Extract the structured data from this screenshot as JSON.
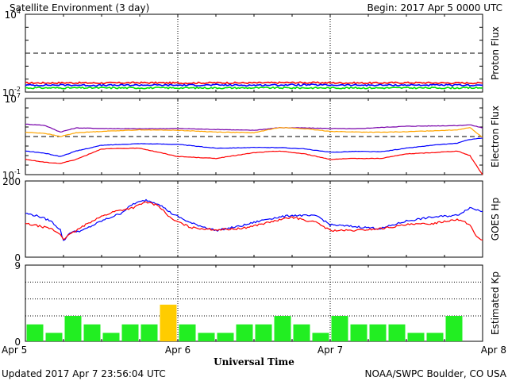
{
  "header": {
    "title": "Satellite Environment (3 day)",
    "begin": "Begin:  2017 Apr 5 0000 UTC"
  },
  "footer": {
    "updated": "Updated 2017 Apr  7 23:56:04 UTC",
    "credit": "NOAA/SWPC Boulder, CO USA"
  },
  "x_axis": {
    "title": "Universal Time",
    "range_hours": [
      0,
      72
    ],
    "ticks": [
      {
        "hour": 0,
        "label": "Apr 5"
      },
      {
        "hour": 24,
        "label": "Apr 6"
      },
      {
        "hour": 48,
        "label": "Apr 7"
      },
      {
        "hour": 72,
        "label": "Apr 8"
      }
    ]
  },
  "chart_data": [
    {
      "type": "line",
      "panel": "proton",
      "ylabel": "Proton Flux",
      "scale": "log",
      "ylim": [
        0.01,
        10000
      ],
      "y_ticks": [
        {
          "value": 10000,
          "base": "10",
          "exp": "4"
        },
        {
          "value": 0.01,
          "base": "10",
          "exp": "-2"
        }
      ],
      "threshold": 10,
      "series": [
        {
          "color": "#ff0000",
          "points": [
            [
              0,
              0.05
            ],
            [
              6,
              0.052
            ],
            [
              12,
              0.05
            ],
            [
              18,
              0.053
            ],
            [
              24,
              0.05
            ],
            [
              30,
              0.052
            ],
            [
              36,
              0.051
            ],
            [
              42,
              0.054
            ],
            [
              48,
              0.052
            ],
            [
              54,
              0.05
            ],
            [
              60,
              0.053
            ],
            [
              66,
              0.051
            ],
            [
              72,
              0.05
            ]
          ]
        },
        {
          "color": "#0000ff",
          "points": [
            [
              0,
              0.034
            ],
            [
              6,
              0.035
            ],
            [
              12,
              0.033
            ],
            [
              18,
              0.035
            ],
            [
              24,
              0.034
            ],
            [
              30,
              0.035
            ],
            [
              36,
              0.034
            ],
            [
              42,
              0.036
            ],
            [
              48,
              0.035
            ],
            [
              54,
              0.034
            ],
            [
              60,
              0.035
            ],
            [
              66,
              0.034
            ],
            [
              72,
              0.034
            ]
          ]
        },
        {
          "color": "#00dd00",
          "points": [
            [
              0,
              0.021
            ],
            [
              6,
              0.021
            ],
            [
              12,
              0.021
            ],
            [
              18,
              0.021
            ],
            [
              24,
              0.021
            ],
            [
              30,
              0.021
            ],
            [
              36,
              0.021
            ],
            [
              42,
              0.021
            ],
            [
              48,
              0.021
            ],
            [
              54,
              0.021
            ],
            [
              60,
              0.021
            ],
            [
              66,
              0.021
            ],
            [
              72,
              0.021
            ]
          ]
        }
      ]
    },
    {
      "type": "line",
      "panel": "electron",
      "ylabel": "Electron Flux",
      "scale": "log",
      "ylim": [
        0.1,
        10000000
      ],
      "y_ticks": [
        {
          "value": 10000000,
          "base": "10",
          "exp": "7"
        },
        {
          "value": 0.1,
          "base": "10",
          "exp": "-1"
        }
      ],
      "threshold": 1000,
      "series": [
        {
          "color": "#7700aa",
          "points": [
            [
              0,
              20000
            ],
            [
              3,
              15000
            ],
            [
              5.5,
              3000
            ],
            [
              8,
              8000
            ],
            [
              12,
              7000
            ],
            [
              18,
              6500
            ],
            [
              24,
              7000
            ],
            [
              30,
              5500
            ],
            [
              36,
              4500
            ],
            [
              40,
              8500
            ],
            [
              44,
              8000
            ],
            [
              48,
              7000
            ],
            [
              52,
              6500
            ],
            [
              56,
              9000
            ],
            [
              60,
              12000
            ],
            [
              64,
              13000
            ],
            [
              68,
              14000
            ],
            [
              70,
              17000
            ],
            [
              72,
              8000
            ]
          ]
        },
        {
          "color": "#ffa500",
          "points": [
            [
              0,
              2800
            ],
            [
              3,
              2200
            ],
            [
              5.5,
              1000
            ],
            [
              8,
              2500
            ],
            [
              12,
              3500
            ],
            [
              18,
              5000
            ],
            [
              24,
              4500
            ],
            [
              30,
              3000
            ],
            [
              36,
              2500
            ],
            [
              40,
              9000
            ],
            [
              44,
              6500
            ],
            [
              48,
              3500
            ],
            [
              52,
              3000
            ],
            [
              56,
              2800
            ],
            [
              60,
              3200
            ],
            [
              64,
              4000
            ],
            [
              68,
              5000
            ],
            [
              70,
              9000
            ],
            [
              72,
              800
            ]
          ]
        },
        {
          "color": "#0000ff",
          "points": [
            [
              0,
              30
            ],
            [
              3,
              18
            ],
            [
              5.5,
              8
            ],
            [
              8,
              30
            ],
            [
              12,
              120
            ],
            [
              18,
              180
            ],
            [
              24,
              150
            ],
            [
              30,
              60
            ],
            [
              36,
              70
            ],
            [
              40,
              70
            ],
            [
              44,
              50
            ],
            [
              48,
              22
            ],
            [
              52,
              28
            ],
            [
              56,
              25
            ],
            [
              60,
              60
            ],
            [
              64,
              120
            ],
            [
              68,
              200
            ],
            [
              70,
              500
            ],
            [
              72,
              700
            ]
          ]
        },
        {
          "color": "#ff0000",
          "points": [
            [
              0,
              4
            ],
            [
              3,
              2
            ],
            [
              5.5,
              1.5
            ],
            [
              8,
              4
            ],
            [
              12,
              50
            ],
            [
              18,
              60
            ],
            [
              24,
              8
            ],
            [
              30,
              5
            ],
            [
              36,
              20
            ],
            [
              40,
              30
            ],
            [
              44,
              15
            ],
            [
              48,
              4
            ],
            [
              52,
              5
            ],
            [
              56,
              5
            ],
            [
              60,
              15
            ],
            [
              64,
              20
            ],
            [
              68,
              30
            ],
            [
              70,
              10
            ],
            [
              71.5,
              0.3
            ],
            [
              72,
              0.1
            ]
          ]
        }
      ]
    },
    {
      "type": "line",
      "panel": "goes-hp",
      "ylabel": "GOES Hp",
      "scale": "linear",
      "ylim": [
        0,
        200
      ],
      "y_ticks": [
        {
          "value": 200,
          "label": "200"
        },
        {
          "value": 0,
          "label": "0"
        }
      ],
      "series": [
        {
          "color": "#0000ff",
          "points": [
            [
              0,
              115
            ],
            [
              2,
              108
            ],
            [
              4,
              95
            ],
            [
              5.5,
              72
            ],
            [
              6,
              42
            ],
            [
              7,
              65
            ],
            [
              9,
              70
            ],
            [
              12,
              95
            ],
            [
              15,
              115
            ],
            [
              17,
              140
            ],
            [
              19,
              150
            ],
            [
              21,
              140
            ],
            [
              23,
              115
            ],
            [
              26,
              90
            ],
            [
              30,
              70
            ],
            [
              34,
              82
            ],
            [
              38,
              100
            ],
            [
              42,
              110
            ],
            [
              46,
              108
            ],
            [
              48,
              85
            ],
            [
              52,
              80
            ],
            [
              56,
              75
            ],
            [
              60,
              95
            ],
            [
              64,
              105
            ],
            [
              68,
              110
            ],
            [
              70,
              130
            ],
            [
              72,
              120
            ]
          ]
        },
        {
          "color": "#ff0000",
          "points": [
            [
              0,
              88
            ],
            [
              2,
              82
            ],
            [
              4,
              75
            ],
            [
              5.5,
              60
            ],
            [
              6,
              48
            ],
            [
              8,
              70
            ],
            [
              11,
              100
            ],
            [
              14,
              120
            ],
            [
              17,
              130
            ],
            [
              19,
              145
            ],
            [
              21,
              135
            ],
            [
              23,
              100
            ],
            [
              26,
              78
            ],
            [
              30,
              72
            ],
            [
              34,
              75
            ],
            [
              38,
              90
            ],
            [
              42,
              105
            ],
            [
              46,
              90
            ],
            [
              48,
              70
            ],
            [
              52,
              70
            ],
            [
              56,
              75
            ],
            [
              60,
              85
            ],
            [
              64,
              88
            ],
            [
              68,
              100
            ],
            [
              70,
              85
            ],
            [
              71,
              55
            ],
            [
              72,
              45
            ]
          ]
        }
      ]
    },
    {
      "type": "bar",
      "panel": "kp",
      "ylabel": "Estimated Kp",
      "ylim": [
        0,
        9
      ],
      "y_ticks": [
        {
          "value": 9,
          "label": "9"
        },
        {
          "value": 0,
          "label": "0"
        }
      ],
      "bar_hours": 3,
      "values": [
        2,
        1,
        3,
        2,
        1,
        2,
        2,
        4.33,
        2,
        1,
        1,
        2,
        2,
        3,
        2,
        1,
        3,
        2,
        2,
        2,
        1,
        1,
        3,
        0
      ],
      "colors": {
        "normal": "#22ee22",
        "elevated": "#ffcc00",
        "elevated_from": 4
      }
    }
  ]
}
